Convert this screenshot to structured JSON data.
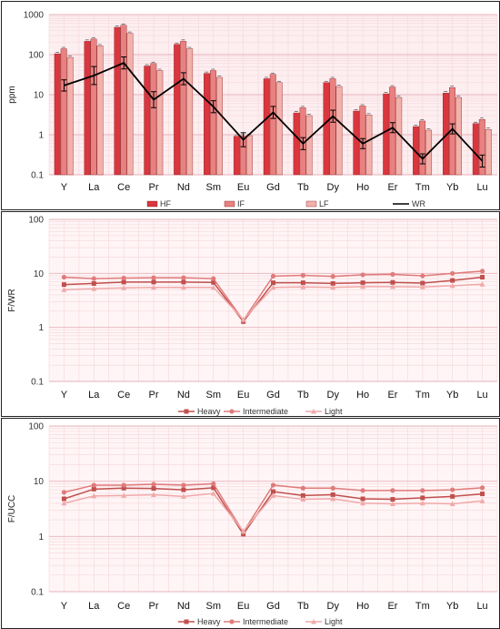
{
  "chart_data": [
    {
      "type": "bar",
      "ylabel": "ppm",
      "yscale": "log",
      "ylim": [
        0.1,
        1000
      ],
      "y_ticks": [
        "0.1",
        "1",
        "10",
        "100",
        "1000"
      ],
      "grid": true,
      "legend_position": "bottom",
      "categories": [
        "Y",
        "La",
        "Ce",
        "Pr",
        "Nd",
        "Sm",
        "Eu",
        "Gd",
        "Tb",
        "Dy",
        "Ho",
        "Er",
        "Tm",
        "Yb",
        "Lu"
      ],
      "series": [
        {
          "name": "HF",
          "type": "bar",
          "color": "#d9363e",
          "values": [
            105,
            215,
            480,
            52,
            180,
            34,
            0.92,
            25,
            3.5,
            20,
            3.9,
            10.5,
            1.6,
            11,
            1.9
          ]
        },
        {
          "name": "IF",
          "type": "bar",
          "color": "#e8817f",
          "values": [
            140,
            245,
            540,
            60,
            215,
            40,
            0.93,
            32,
            4.7,
            25,
            5.2,
            15.5,
            2.2,
            15,
            2.4
          ]
        },
        {
          "name": "LF",
          "type": "bar",
          "color": "#f2b1aa",
          "values": [
            85,
            165,
            340,
            40,
            140,
            27,
            0.95,
            20,
            3.0,
            16,
            3.1,
            8.5,
            1.3,
            8.5,
            1.35
          ]
        },
        {
          "name": "WR",
          "type": "line",
          "color": "#000000",
          "values": [
            17,
            30,
            62,
            7.5,
            25,
            5,
            0.75,
            3.6,
            0.6,
            2.9,
            0.6,
            1.5,
            0.25,
            1.4,
            0.22
          ],
          "error": [
            0.28,
            0.45,
            0.3,
            0.4,
            0.3,
            0.3,
            0.35,
            0.3,
            0.3,
            0.3,
            0.25,
            0.25,
            0.25,
            0.25,
            0.3
          ]
        }
      ]
    },
    {
      "type": "line",
      "ylabel": "F/WR",
      "yscale": "log",
      "ylim": [
        0.1,
        100
      ],
      "y_ticks": [
        "0.1",
        "1",
        "10",
        "100"
      ],
      "grid": true,
      "legend_position": "bottom",
      "categories": [
        "Y",
        "La",
        "Ce",
        "Pr",
        "Nd",
        "Sm",
        "Eu",
        "Gd",
        "Tb",
        "Dy",
        "Ho",
        "Er",
        "Tm",
        "Yb",
        "Lu"
      ],
      "series": [
        {
          "name": "Heavy",
          "marker": "square",
          "color": "#c0504d",
          "values": [
            6.2,
            6.5,
            6.9,
            6.9,
            6.9,
            6.8,
            1.28,
            6.7,
            6.7,
            6.5,
            6.7,
            6.8,
            6.6,
            7.4,
            8.5
          ]
        },
        {
          "name": "Intermediate",
          "marker": "circle",
          "color": "#e07b7b",
          "values": [
            8.5,
            8.0,
            8.2,
            8.3,
            8.3,
            8.0,
            1.35,
            8.9,
            9.2,
            8.8,
            9.4,
            9.6,
            9.0,
            10.0,
            11.0
          ]
        },
        {
          "name": "Light",
          "marker": "triangle",
          "color": "#f0a9a9",
          "values": [
            5.0,
            5.2,
            5.4,
            5.5,
            5.5,
            5.5,
            1.4,
            5.5,
            5.6,
            5.5,
            5.7,
            5.7,
            5.6,
            5.9,
            6.3
          ]
        }
      ]
    },
    {
      "type": "line",
      "ylabel": "F/UCC",
      "yscale": "log",
      "ylim": [
        0.1,
        100
      ],
      "y_ticks": [
        "0.1",
        "1",
        "10",
        "100"
      ],
      "grid": true,
      "legend_position": "bottom",
      "categories": [
        "Y",
        "La",
        "Ce",
        "Pr",
        "Nd",
        "Sm",
        "Eu",
        "Gd",
        "Tb",
        "Dy",
        "Ho",
        "Er",
        "Tm",
        "Yb",
        "Lu"
      ],
      "series": [
        {
          "name": "Heavy",
          "marker": "square",
          "color": "#c0504d",
          "values": [
            4.8,
            7.2,
            7.5,
            7.4,
            7.0,
            7.6,
            1.1,
            6.5,
            5.5,
            5.7,
            4.8,
            4.7,
            5.0,
            5.3,
            5.9
          ]
        },
        {
          "name": "Intermediate",
          "marker": "circle",
          "color": "#e07b7b",
          "values": [
            6.3,
            8.5,
            8.5,
            8.8,
            8.5,
            9.0,
            1.2,
            8.5,
            7.5,
            7.5,
            6.8,
            6.8,
            6.8,
            7.0,
            7.6
          ]
        },
        {
          "name": "Light",
          "marker": "triangle",
          "color": "#f0a9a9",
          "values": [
            4.0,
            5.4,
            5.5,
            5.7,
            5.3,
            6.0,
            1.25,
            5.5,
            4.7,
            4.8,
            4.0,
            3.9,
            4.0,
            3.9,
            4.4
          ]
        }
      ]
    }
  ]
}
